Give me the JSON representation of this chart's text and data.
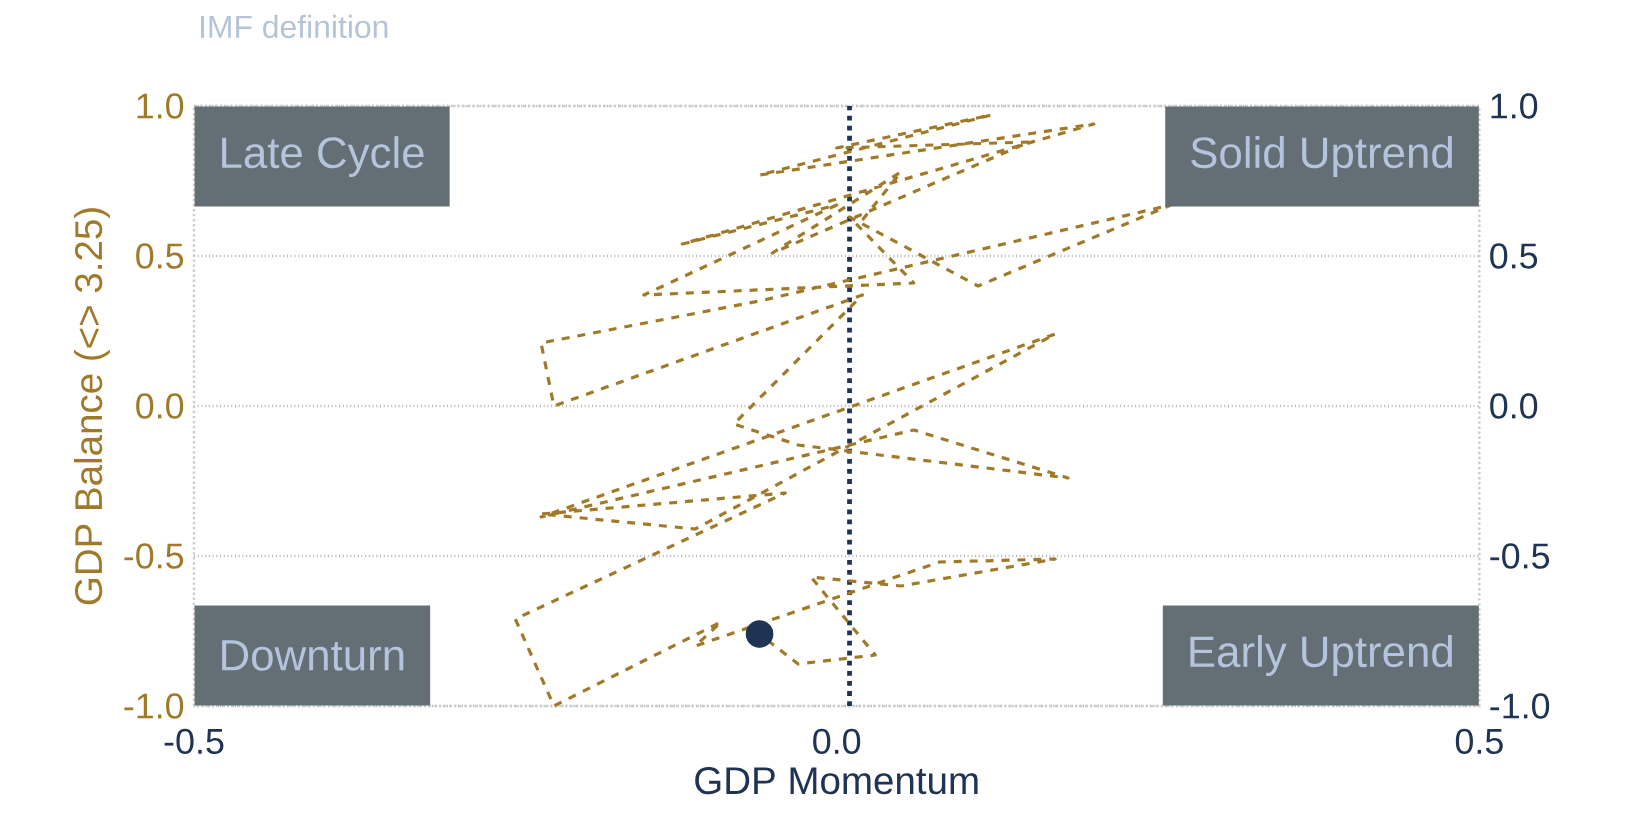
{
  "chart_data": {
    "type": "line",
    "title": "IMF definition",
    "xlabel": "GDP Momentum",
    "ylabel": "GDP Balance (<> 3.25)",
    "xlim": [
      -0.5,
      0.5
    ],
    "xticks": [
      -0.5,
      {
        "value": 0,
        "label": "0.0"
      },
      0.5
    ],
    "ylim": [
      -1,
      1
    ],
    "yticks": [
      {
        "value": -1,
        "label": "-1.0"
      },
      -0.5,
      {
        "value": 0,
        "label": "0.0"
      },
      0.5,
      {
        "value": 1,
        "label": "1.0"
      }
    ],
    "y2lim": [
      -1,
      1
    ],
    "y2ticks": [
      {
        "value": -1,
        "label": "-1.0"
      },
      -0.5,
      {
        "value": 0,
        "label": "0.0"
      },
      0.5,
      {
        "value": 1,
        "label": "1.0"
      }
    ],
    "grid": "y",
    "line_style": "dashed",
    "ref_lines": [
      {
        "axis": "x",
        "value": 0.01,
        "color": "#1f3354",
        "line_style": "dotted"
      }
    ],
    "annotations": [
      "Late Cycle",
      "Solid Uptrend",
      "Downturn",
      "Early Uptrend"
    ],
    "series": [
      {
        "color": "#a07a28",
        "x": [
          0.02,
          0.05,
          -0.05,
          0.15,
          0.0,
          0.12,
          -0.06,
          0.2,
          -0.12,
          0.0,
          -0.15,
          0.06,
          0.01,
          0.11,
          0.26,
          -0.06,
          -0.23,
          -0.22,
          0.02,
          -0.08,
          -0.03,
          0.18,
          0.06,
          -0.23,
          0.17,
          -0.11,
          -0.23,
          -0.04,
          -0.25,
          -0.22,
          -0.09,
          -0.11,
          0.08,
          0.17,
          0.05,
          -0.02,
          0.03,
          -0.03,
          -0.06
        ],
        "values": [
          0.62,
          0.78,
          0.51,
          0.88,
          0.86,
          0.97,
          0.77,
          0.94,
          0.54,
          0.67,
          0.37,
          0.41,
          0.63,
          0.4,
          0.67,
          0.35,
          0.21,
          0.0,
          0.37,
          -0.06,
          -0.13,
          -0.24,
          -0.08,
          -0.37,
          0.24,
          -0.41,
          -0.36,
          -0.29,
          -0.71,
          -1.0,
          -0.72,
          -0.8,
          -0.52,
          -0.51,
          -0.6,
          -0.57,
          -0.83,
          -0.86,
          -0.76
        ]
      },
      {
        "type": "scatter",
        "color": "#1f3354",
        "x": [
          -0.06
        ],
        "values": [
          -0.76
        ]
      }
    ]
  }
}
